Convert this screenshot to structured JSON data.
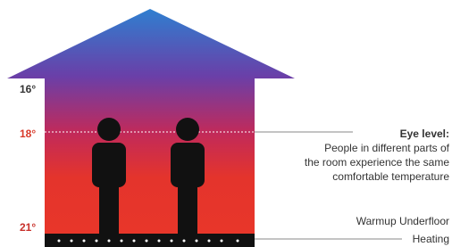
{
  "temperatures": [
    "16°",
    "18°",
    "21°"
  ],
  "eye_level": {
    "title": "Eye level:",
    "lines": [
      "People in different parts of",
      "the room experience the same",
      "comfortable temperature"
    ]
  },
  "heating": {
    "lines": [
      "Warmup Underfloor",
      "Heating"
    ]
  }
}
